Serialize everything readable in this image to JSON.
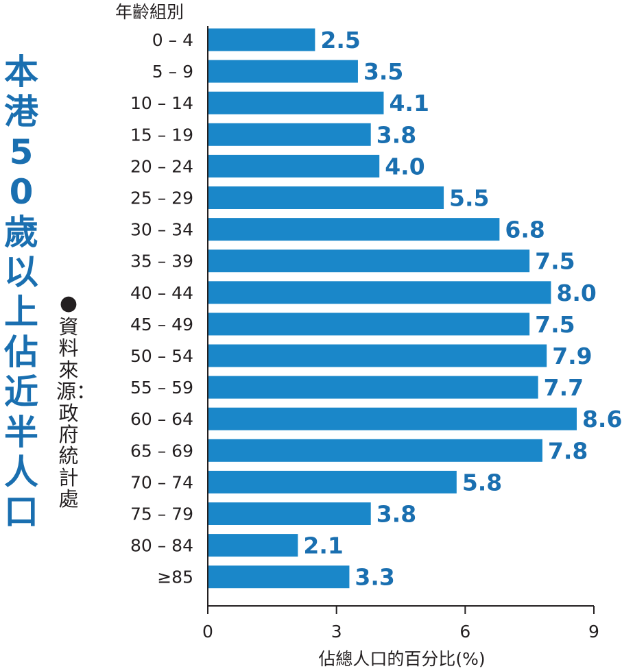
{
  "title": "本港50歲以上佔近半人口",
  "source": "資料來源：政府統計處",
  "source_bullet": "●",
  "colors": {
    "bar": "#1a87c9",
    "label": "#1a6fb0",
    "text": "#231f20",
    "title": "#1a6fb0"
  },
  "chart_data": {
    "type": "bar",
    "orientation": "horizontal",
    "title": "本港50歲以上佔近半人口",
    "ylabel": "年齡組別",
    "xlabel": "佔總人口的百分比(%)",
    "xlim": [
      0,
      9
    ],
    "xticks": [
      0,
      3,
      6,
      9
    ],
    "categories": [
      "0 – 4",
      "5 – 9",
      "10 – 14",
      "15 – 19",
      "20 – 24",
      "25 – 29",
      "30 – 34",
      "35 – 39",
      "40 – 44",
      "45 – 49",
      "50 – 54",
      "55 – 59",
      "60 – 64",
      "65 – 69",
      "70 – 74",
      "75 – 79",
      "80 – 84",
      "≥85"
    ],
    "values": [
      2.5,
      3.5,
      4.1,
      3.8,
      4.0,
      5.5,
      6.8,
      7.5,
      8.0,
      7.5,
      7.9,
      7.7,
      8.6,
      7.8,
      5.8,
      3.8,
      2.1,
      3.3
    ],
    "data_labels": [
      "2.5",
      "3.5",
      "4.1",
      "3.8",
      "4.0",
      "5.5",
      "6.8",
      "7.5",
      "8.0",
      "7.5",
      "7.9",
      "7.7",
      "8.6",
      "7.8",
      "5.8",
      "3.8",
      "2.1",
      "3.3"
    ],
    "grid": false,
    "legend": "none"
  }
}
